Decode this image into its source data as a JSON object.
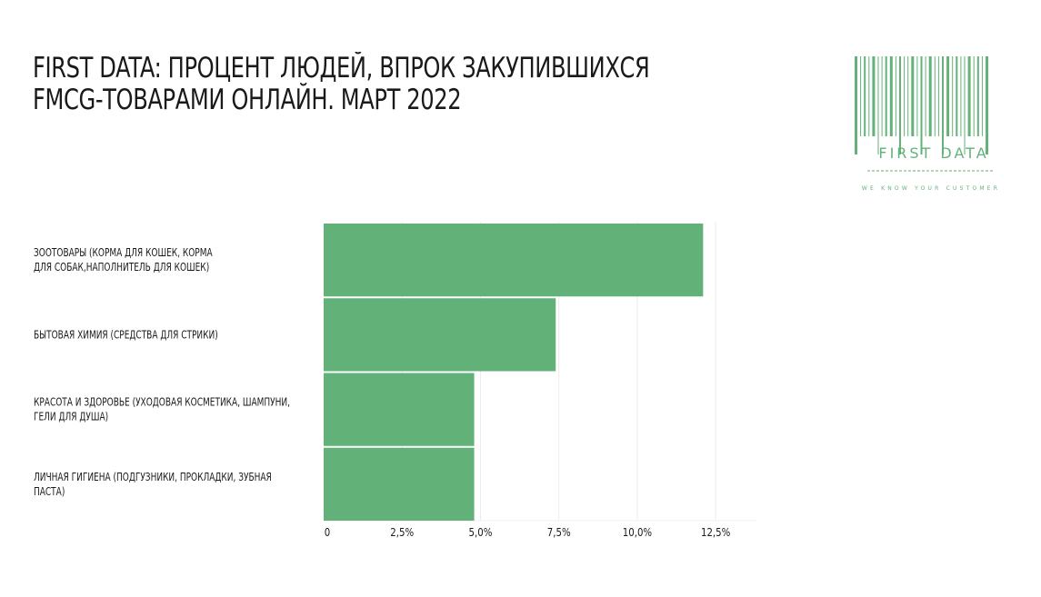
{
  "title": {
    "line1": "FIRST DATA: ПРОЦЕНТ ЛЮДЕЙ, ВПРОК ЗАКУПИВШИХСЯ",
    "line2": "FMCG-ТОВАРАМИ ОНЛАЙН. МАРТ 2022"
  },
  "logo": {
    "brand": "FIRST DATA",
    "tagline": "WE KNOW YOUR CUSTOMER",
    "color": "#64b27a"
  },
  "colors": {
    "bar": "#62b179",
    "grid": "#ececec",
    "text": "#1a1a1a"
  },
  "chart_data": {
    "type": "bar",
    "orientation": "horizontal",
    "categories": [
      [
        "ЗООТОВАРЫ (КОРМА ДЛЯ КОШЕК, КОРМА",
        "ДЛЯ СОБАК,НАПОЛНИТЕЛЬ ДЛЯ КОШЕК)"
      ],
      [
        "БЫТОВАЯ ХИМИЯ (СРЕДСТВА ДЛЯ СТРИКИ)"
      ],
      [
        "КРАСОТА И ЗДОРОВЬЕ (УХОДОВАЯ КОСМЕТИКА, ШАМПУНИ,",
        "ГЕЛИ ДЛЯ ДУША)"
      ],
      [
        "ЛИЧНАЯ ГИГИЕНА (ПОДГУЗНИКИ, ПРОКЛАДКИ, ЗУБНАЯ",
        "ПАСТА)"
      ]
    ],
    "values": [
      12.1,
      7.4,
      4.8,
      4.8
    ],
    "xlim": [
      0,
      13.8
    ],
    "xticks": [
      0,
      2.5,
      5.0,
      7.5,
      10.0,
      12.5
    ],
    "xtick_labels": [
      "0",
      "2,5%",
      "5,0%",
      "7,5%",
      "10,0%",
      "12,5%"
    ],
    "grid": true,
    "legend": "none"
  }
}
